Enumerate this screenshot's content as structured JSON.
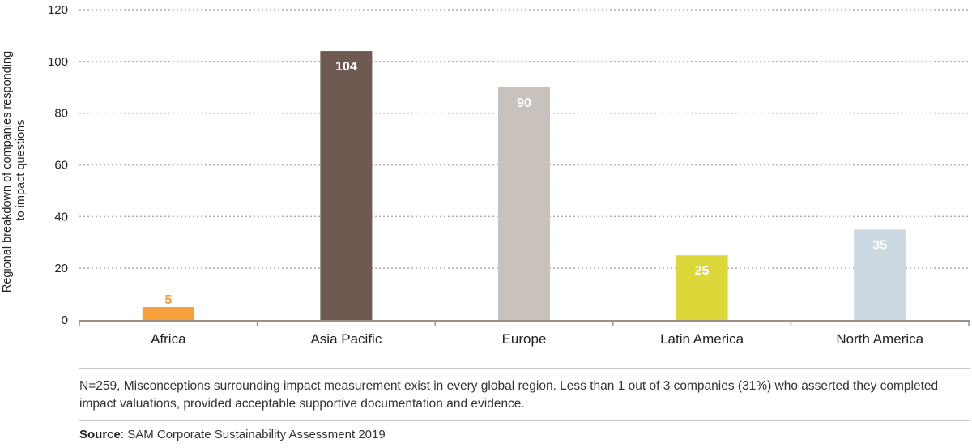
{
  "chart_data": {
    "type": "bar",
    "title": "",
    "xlabel": "",
    "ylabel_line1": "Regional breakdown of companies responding",
    "ylabel_line2": "to impact questions",
    "ylim": [
      0,
      120
    ],
    "yticks": [
      0,
      20,
      40,
      60,
      80,
      100,
      120
    ],
    "grid": "dotted horizontal",
    "categories": [
      "Africa",
      "Asia Pacific",
      "Europe",
      "Latin America",
      "North America"
    ],
    "values": [
      5,
      104,
      90,
      25,
      35
    ],
    "colors": [
      "#f5a03a",
      "#6e5a50",
      "#c9c1bb",
      "#dcd83a",
      "#ccd9e3"
    ],
    "label_colors": [
      "#f5a03a",
      "#ffffff",
      "#ffffff",
      "#ffffff",
      "#ffffff"
    ]
  },
  "footnote": "N=259, Misconceptions surrounding impact measurement exist in every global region. Less than 1 out of 3 companies (31%) who asserted they completed impact valuations, provided acceptable supportive documentation and evidence.",
  "source": {
    "label": "Source",
    "text": ": SAM Corporate Sustainability Assessment 2019"
  }
}
